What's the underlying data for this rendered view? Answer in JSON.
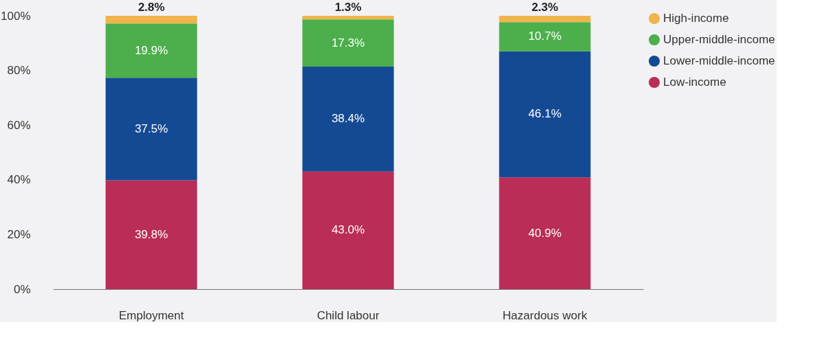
{
  "chart_data": {
    "type": "bar",
    "stacked": true,
    "categories": [
      "Employment",
      "Child labour",
      "Hazardous work"
    ],
    "series": [
      {
        "name": "Low-income",
        "color": "#b92d56",
        "values": [
          39.8,
          43.0,
          40.9
        ],
        "value_labels": [
          "39.8%",
          "43.0%",
          "40.9%"
        ]
      },
      {
        "name": "Lower-middle-income",
        "color": "#144a93",
        "values": [
          37.5,
          38.4,
          46.1
        ],
        "value_labels": [
          "37.5%",
          "38.4%",
          "46.1%"
        ]
      },
      {
        "name": "Upper-middle-income",
        "color": "#4caf4c",
        "values": [
          19.9,
          17.3,
          10.7
        ],
        "value_labels": [
          "19.9%",
          "17.3%",
          "10.7%"
        ]
      },
      {
        "name": "High-income",
        "color": "#f0b44c",
        "values": [
          2.8,
          1.3,
          2.3
        ],
        "value_labels": [
          "2.8%",
          "1.3%",
          "2.3%"
        ]
      }
    ],
    "ylim": [
      0,
      100
    ],
    "yticks": [
      {
        "value": 0,
        "label": "0%"
      },
      {
        "value": 20,
        "label": "20%"
      },
      {
        "value": 40,
        "label": "40%"
      },
      {
        "value": 60,
        "label": "60%"
      },
      {
        "value": 80,
        "label": "80%"
      },
      {
        "value": 100,
        "label": "100%"
      }
    ],
    "grid": false,
    "legend": "top right"
  }
}
